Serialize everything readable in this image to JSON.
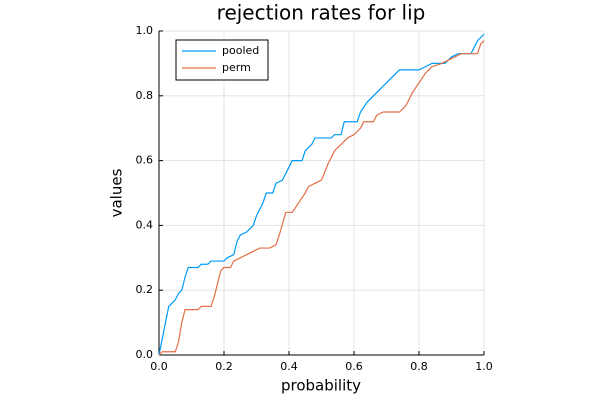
{
  "chart_data": {
    "type": "line",
    "title": "rejection rates for lip",
    "xlabel": "probability",
    "ylabel": "values",
    "xlim": [
      0,
      1
    ],
    "ylim": [
      0,
      1
    ],
    "xticks": [
      {
        "value": 0,
        "label": "0.0"
      },
      0.2,
      0.4,
      0.6,
      0.8,
      {
        "value": 1,
        "label": "1.0"
      }
    ],
    "yticks": [
      {
        "value": 0,
        "label": "0.0"
      },
      0.2,
      0.4,
      0.6,
      0.8,
      {
        "value": 1,
        "label": "1.0"
      }
    ],
    "grid": true,
    "legend": "top-left",
    "series": [
      {
        "name": "pooled",
        "color": "#009af9",
        "x": [
          0,
          0.01,
          0.02,
          0.03,
          0.04,
          0.05,
          0.06,
          0.07,
          0.08,
          0.09,
          0.12,
          0.13,
          0.15,
          0.16,
          0.2,
          0.21,
          0.23,
          0.24,
          0.25,
          0.27,
          0.29,
          0.3,
          0.32,
          0.33,
          0.35,
          0.36,
          0.38,
          0.4,
          0.41,
          0.44,
          0.45,
          0.47,
          0.48,
          0.53,
          0.54,
          0.56,
          0.57,
          0.61,
          0.62,
          0.64,
          0.66,
          0.68,
          0.7,
          0.72,
          0.74,
          0.8,
          0.82,
          0.84,
          0.88,
          0.9,
          0.92,
          0.96,
          0.97,
          0.98,
          1.0
        ],
        "values": [
          0,
          0.05,
          0.1,
          0.15,
          0.16,
          0.17,
          0.19,
          0.2,
          0.24,
          0.27,
          0.27,
          0.28,
          0.28,
          0.29,
          0.29,
          0.3,
          0.31,
          0.35,
          0.37,
          0.38,
          0.4,
          0.43,
          0.47,
          0.5,
          0.5,
          0.53,
          0.54,
          0.58,
          0.6,
          0.6,
          0.63,
          0.65,
          0.67,
          0.67,
          0.68,
          0.68,
          0.72,
          0.72,
          0.75,
          0.78,
          0.8,
          0.82,
          0.84,
          0.86,
          0.88,
          0.88,
          0.89,
          0.9,
          0.9,
          0.92,
          0.93,
          0.93,
          0.95,
          0.97,
          0.99
        ]
      },
      {
        "name": "perm",
        "color": "#e26f46",
        "x": [
          0,
          0.01,
          0.05,
          0.06,
          0.07,
          0.08,
          0.12,
          0.13,
          0.16,
          0.17,
          0.19,
          0.2,
          0.22,
          0.23,
          0.25,
          0.27,
          0.29,
          0.31,
          0.34,
          0.36,
          0.37,
          0.39,
          0.41,
          0.43,
          0.45,
          0.46,
          0.48,
          0.5,
          0.52,
          0.54,
          0.56,
          0.58,
          0.6,
          0.62,
          0.63,
          0.66,
          0.67,
          0.69,
          0.74,
          0.76,
          0.78,
          0.8,
          0.82,
          0.84,
          0.87,
          0.89,
          0.91,
          0.93,
          0.98,
          0.99,
          1.0
        ],
        "values": [
          0,
          0.01,
          0.01,
          0.04,
          0.1,
          0.14,
          0.14,
          0.15,
          0.15,
          0.18,
          0.26,
          0.27,
          0.27,
          0.29,
          0.3,
          0.31,
          0.32,
          0.33,
          0.33,
          0.34,
          0.37,
          0.44,
          0.44,
          0.47,
          0.5,
          0.52,
          0.53,
          0.54,
          0.59,
          0.63,
          0.65,
          0.67,
          0.68,
          0.7,
          0.72,
          0.72,
          0.74,
          0.75,
          0.75,
          0.77,
          0.81,
          0.84,
          0.87,
          0.89,
          0.9,
          0.91,
          0.92,
          0.93,
          0.93,
          0.96,
          0.97
        ]
      }
    ]
  }
}
